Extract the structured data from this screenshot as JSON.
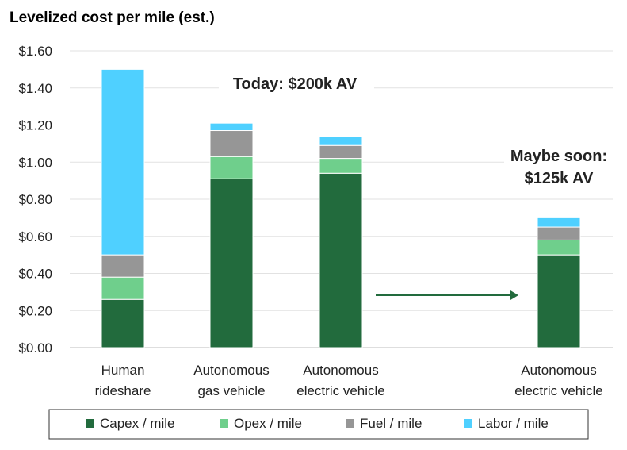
{
  "chart_data": {
    "type": "bar",
    "stacked": true,
    "title": "Levelized cost per mile (est.)",
    "ylim": [
      0,
      1.6
    ],
    "yticks": [
      "$0.00",
      "$0.20",
      "$0.40",
      "$0.60",
      "$0.80",
      "$1.00",
      "$1.20",
      "$1.40",
      "$1.60"
    ],
    "ytick_values": [
      0,
      0.2,
      0.4,
      0.6,
      0.8,
      1.0,
      1.2,
      1.4,
      1.6
    ],
    "categories": [
      [
        "Human",
        "rideshare"
      ],
      [
        "Autonomous",
        "gas vehicle"
      ],
      [
        "Autonomous",
        "electric vehicle"
      ],
      [
        "Autonomous",
        "electric vehicle"
      ]
    ],
    "series": [
      {
        "name": "Capex / mile",
        "color": "#226b3d",
        "values": [
          0.26,
          0.91,
          0.94,
          0.5
        ]
      },
      {
        "name": "Opex / mile",
        "color": "#6fcf8c",
        "values": [
          0.12,
          0.12,
          0.08,
          0.08
        ]
      },
      {
        "name": "Fuel / mile",
        "color": "#969696",
        "values": [
          0.12,
          0.14,
          0.07,
          0.07
        ]
      },
      {
        "name": "Labor / mile",
        "color": "#4fd0ff",
        "values": [
          1.0,
          0.04,
          0.05,
          0.05
        ]
      }
    ],
    "annotations": {
      "today": "Today: $200k AV",
      "soon_line1": "Maybe soon:",
      "soon_line2": "$125k AV"
    },
    "legend_position": "bottom",
    "grid": true,
    "arrow_color": "#226b3d"
  }
}
